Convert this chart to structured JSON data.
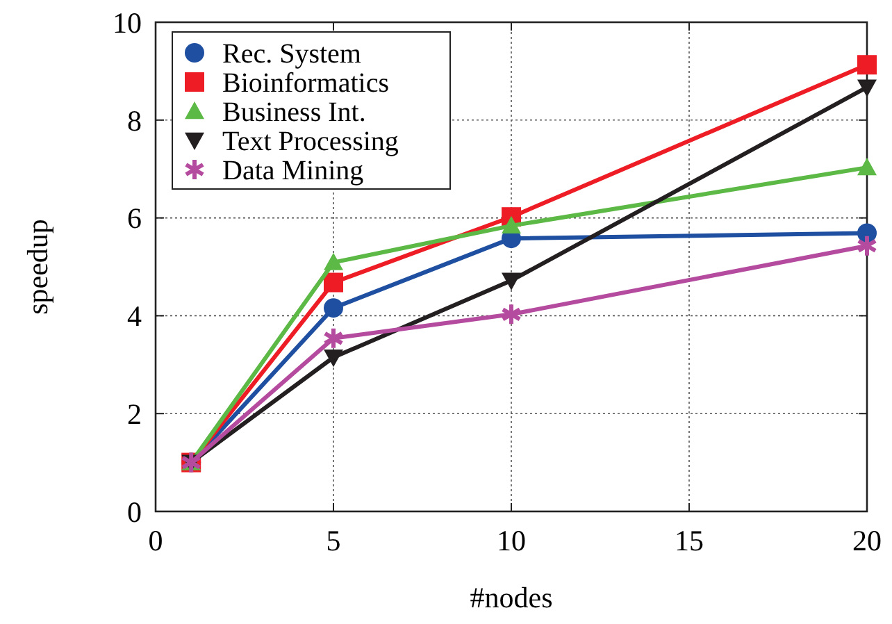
{
  "chart_data": {
    "type": "line",
    "xlabel": "#nodes",
    "ylabel": "speedup",
    "x": [
      1,
      5,
      10,
      20
    ],
    "xlim": [
      0,
      20
    ],
    "xticks": [
      0,
      5,
      10,
      15,
      20
    ],
    "ylim": [
      0,
      10
    ],
    "yticks": [
      0,
      2,
      4,
      6,
      8,
      10
    ],
    "grid": true,
    "legend": "top left",
    "line_style": "solid",
    "series": [
      {
        "name": "Rec. System",
        "color": "#1f4fa0",
        "marker": "circle",
        "values": [
          1,
          4.16,
          5.58,
          5.69
        ]
      },
      {
        "name": "Bioinformatics",
        "color": "#ee1c25",
        "marker": "square",
        "values": [
          1,
          4.68,
          6.02,
          9.13
        ]
      },
      {
        "name": "Business Int.",
        "color": "#5cb946",
        "marker": "triangle",
        "values": [
          1,
          5.09,
          5.84,
          7.03
        ]
      },
      {
        "name": "Text Processing",
        "color": "#231f20",
        "marker": "triangle-down",
        "values": [
          1,
          3.15,
          4.72,
          8.67
        ]
      },
      {
        "name": "Data Mining",
        "color": "#b54b9e",
        "marker": "cross",
        "values": [
          1,
          3.54,
          4.03,
          5.43
        ]
      }
    ]
  }
}
